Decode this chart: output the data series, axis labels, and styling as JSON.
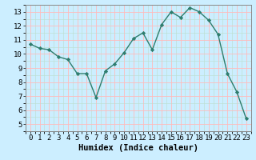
{
  "x": [
    0,
    1,
    2,
    3,
    4,
    5,
    6,
    7,
    8,
    9,
    10,
    11,
    12,
    13,
    14,
    15,
    16,
    17,
    18,
    19,
    20,
    21,
    22,
    23
  ],
  "y": [
    10.7,
    10.4,
    10.3,
    9.8,
    9.6,
    8.6,
    8.6,
    6.9,
    8.8,
    9.3,
    10.1,
    11.1,
    11.5,
    10.3,
    12.1,
    13.0,
    12.6,
    13.3,
    13.0,
    12.4,
    11.4,
    8.6,
    7.3,
    5.4
  ],
  "line_color": "#2e7d6e",
  "marker": "D",
  "marker_size": 2.2,
  "background_color": "#cceeff",
  "grid_major_color": "#ffbbbb",
  "grid_minor_color": "#ddeedd",
  "xlabel": "Humidex (Indice chaleur)",
  "xlim": [
    -0.5,
    23.5
  ],
  "ylim": [
    4.5,
    13.5
  ],
  "yticks": [
    5,
    6,
    7,
    8,
    9,
    10,
    11,
    12,
    13
  ],
  "xticks": [
    0,
    1,
    2,
    3,
    4,
    5,
    6,
    7,
    8,
    9,
    10,
    11,
    12,
    13,
    14,
    15,
    16,
    17,
    18,
    19,
    20,
    21,
    22,
    23
  ],
  "xlabel_fontsize": 7.5,
  "tick_fontsize": 6.5,
  "line_width": 1.0,
  "spine_color": "#888888"
}
